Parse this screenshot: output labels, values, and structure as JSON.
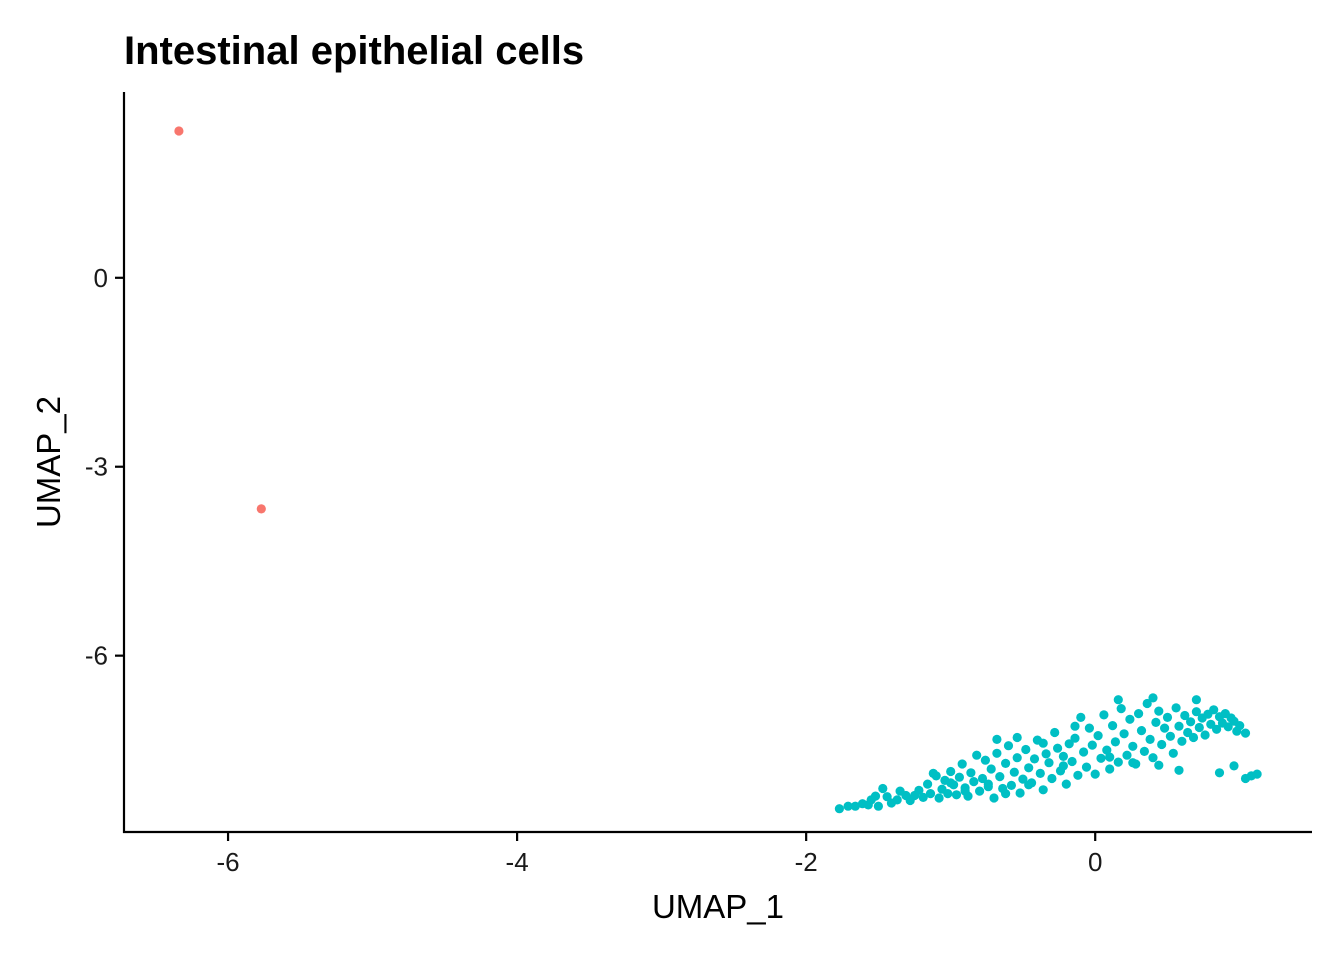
{
  "chart_data": {
    "type": "scatter",
    "title": "Intestinal epithelial cells",
    "xlabel": "UMAP_1",
    "ylabel": "UMAP_2",
    "xlim": [
      -6.72,
      1.5
    ],
    "ylim": [
      -8.8,
      2.95
    ],
    "x_ticks": [
      -6,
      -4,
      -2,
      0
    ],
    "y_ticks": [
      0,
      -3,
      -6
    ],
    "grid": false,
    "legend": "none",
    "series": [
      {
        "color": "#F8766D",
        "points": [
          [
            -6.34,
            2.33
          ],
          [
            -5.77,
            -3.67
          ]
        ]
      },
      {
        "color": "#00BFC4",
        "points": [
          [
            -1.77,
            -8.43
          ],
          [
            -1.71,
            -8.39
          ],
          [
            -1.66,
            -8.39
          ],
          [
            -1.61,
            -8.35
          ],
          [
            -1.57,
            -8.37
          ],
          [
            -1.55,
            -8.29
          ],
          [
            -1.52,
            -8.23
          ],
          [
            -1.5,
            -8.39
          ],
          [
            -1.47,
            -8.11
          ],
          [
            -1.44,
            -8.24
          ],
          [
            -1.41,
            -8.34
          ],
          [
            -1.37,
            -8.29
          ],
          [
            -1.35,
            -8.15
          ],
          [
            -1.31,
            -8.22
          ],
          [
            -1.28,
            -8.3
          ],
          [
            -1.25,
            -8.22
          ],
          [
            -1.22,
            -8.14
          ],
          [
            -1.19,
            -8.25
          ],
          [
            -1.16,
            -8.04
          ],
          [
            -1.14,
            -8.19
          ],
          [
            -1.12,
            -7.87
          ],
          [
            -1.1,
            -7.91
          ],
          [
            -1.08,
            -8.26
          ],
          [
            -1.06,
            -8.12
          ],
          [
            -1.04,
            -7.98
          ],
          [
            -1.02,
            -8.19
          ],
          [
            -1.0,
            -7.84
          ],
          [
            -0.98,
            -8.05
          ],
          [
            -0.96,
            -8.21
          ],
          [
            -0.94,
            -7.93
          ],
          [
            -0.92,
            -7.72
          ],
          [
            -0.9,
            -8.1
          ],
          [
            -0.88,
            -8.23
          ],
          [
            -0.86,
            -7.86
          ],
          [
            -0.84,
            -8.0
          ],
          [
            -0.82,
            -7.58
          ],
          [
            -0.8,
            -8.15
          ],
          [
            -0.78,
            -7.95
          ],
          [
            -0.76,
            -7.66
          ],
          [
            -0.74,
            -8.04
          ],
          [
            -0.72,
            -7.8
          ],
          [
            -0.7,
            -8.26
          ],
          [
            -0.68,
            -7.55
          ],
          [
            -0.66,
            -7.92
          ],
          [
            -0.64,
            -8.11
          ],
          [
            -0.62,
            -7.71
          ],
          [
            -0.6,
            -7.43
          ],
          [
            -0.58,
            -8.06
          ],
          [
            -0.56,
            -7.85
          ],
          [
            -0.54,
            -7.62
          ],
          [
            -0.52,
            -8.18
          ],
          [
            -0.5,
            -7.96
          ],
          [
            -0.48,
            -7.49
          ],
          [
            -0.46,
            -7.78
          ],
          [
            -0.44,
            -8.02
          ],
          [
            -0.42,
            -7.64
          ],
          [
            -0.4,
            -7.34
          ],
          [
            -0.38,
            -7.87
          ],
          [
            -0.36,
            -8.13
          ],
          [
            -0.34,
            -7.56
          ],
          [
            -0.32,
            -7.7
          ],
          [
            -0.3,
            -7.95
          ],
          [
            -0.28,
            -7.22
          ],
          [
            -0.26,
            -7.47
          ],
          [
            -0.24,
            -7.83
          ],
          [
            -0.22,
            -7.6
          ],
          [
            -0.2,
            -8.04
          ],
          [
            -0.18,
            -7.4
          ],
          [
            -0.16,
            -7.68
          ],
          [
            -0.14,
            -7.31
          ],
          [
            -0.12,
            -7.9
          ],
          [
            -0.1,
            -6.98
          ],
          [
            -0.08,
            -7.53
          ],
          [
            -0.06,
            -7.77
          ],
          [
            -0.04,
            -7.15
          ],
          [
            -0.02,
            -7.42
          ],
          [
            0.0,
            -7.88
          ],
          [
            0.02,
            -7.27
          ],
          [
            0.04,
            -7.63
          ],
          [
            0.06,
            -6.94
          ],
          [
            0.08,
            -7.5
          ],
          [
            0.1,
            -7.8
          ],
          [
            0.12,
            -7.11
          ],
          [
            0.14,
            -7.37
          ],
          [
            0.16,
            -7.69
          ],
          [
            0.18,
            -6.84
          ],
          [
            0.2,
            -7.24
          ],
          [
            0.22,
            -7.58
          ],
          [
            0.24,
            -7.01
          ],
          [
            0.26,
            -7.44
          ],
          [
            0.28,
            -7.72
          ],
          [
            0.3,
            -6.92
          ],
          [
            0.32,
            -7.19
          ],
          [
            0.34,
            -7.52
          ],
          [
            0.36,
            -6.76
          ],
          [
            0.38,
            -7.33
          ],
          [
            0.4,
            -7.62
          ],
          [
            0.42,
            -7.06
          ],
          [
            0.44,
            -6.88
          ],
          [
            0.46,
            -7.41
          ],
          [
            0.48,
            -7.15
          ],
          [
            0.5,
            -6.98
          ],
          [
            0.52,
            -7.28
          ],
          [
            0.54,
            -7.55
          ],
          [
            0.56,
            -6.83
          ],
          [
            0.58,
            -7.12
          ],
          [
            0.6,
            -7.36
          ],
          [
            0.62,
            -6.95
          ],
          [
            0.64,
            -7.22
          ],
          [
            0.66,
            -7.05
          ],
          [
            0.68,
            -7.3
          ],
          [
            0.7,
            -6.89
          ],
          [
            0.72,
            -7.14
          ],
          [
            0.74,
            -6.99
          ],
          [
            0.76,
            -7.26
          ],
          [
            0.78,
            -6.93
          ],
          [
            0.8,
            -7.09
          ],
          [
            0.82,
            -6.86
          ],
          [
            0.84,
            -7.17
          ],
          [
            0.86,
            -6.97
          ],
          [
            0.88,
            -7.07
          ],
          [
            0.9,
            -6.92
          ],
          [
            0.92,
            -7.13
          ],
          [
            0.94,
            -6.99
          ],
          [
            0.96,
            -7.04
          ],
          [
            0.98,
            -7.2
          ],
          [
            1.0,
            -7.11
          ],
          [
            1.04,
            -7.23
          ],
          [
            1.08,
            -7.91
          ],
          [
            1.12,
            -7.88
          ],
          [
            1.04,
            -7.95
          ],
          [
            0.96,
            -7.75
          ],
          [
            0.86,
            -7.86
          ],
          [
            0.58,
            -7.82
          ],
          [
            0.44,
            -7.74
          ],
          [
            0.26,
            -7.7
          ],
          [
            0.1,
            -7.61
          ],
          [
            -0.22,
            -7.75
          ],
          [
            -0.46,
            -8.05
          ],
          [
            -0.62,
            -8.19
          ],
          [
            -0.74,
            -8.08
          ],
          [
            -0.9,
            -8.15
          ],
          [
            -1.0,
            -8.02
          ],
          [
            -0.68,
            -7.33
          ],
          [
            -0.54,
            -7.3
          ],
          [
            -0.36,
            -7.39
          ],
          [
            -0.14,
            -7.12
          ],
          [
            0.16,
            -6.7
          ],
          [
            0.4,
            -6.67
          ],
          [
            0.7,
            -6.7
          ]
        ]
      }
    ]
  }
}
